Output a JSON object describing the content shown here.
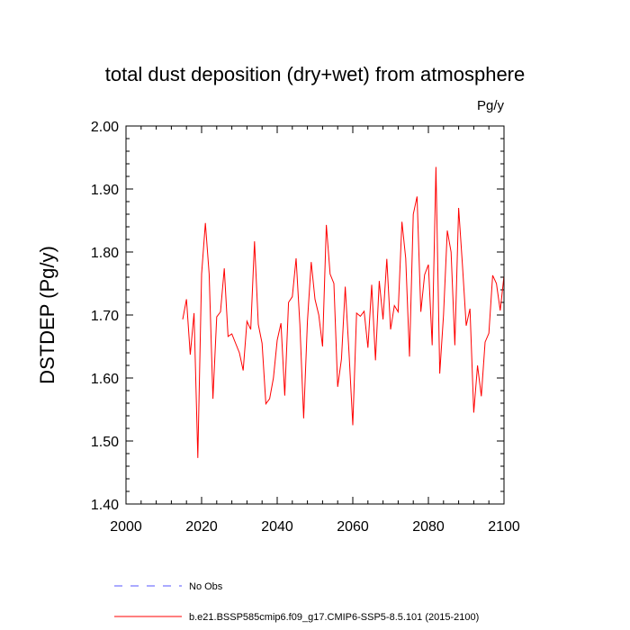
{
  "chart_data": {
    "type": "line",
    "title": "total dust deposition (dry+wet) from atmosphere",
    "units": "Pg/y",
    "xlabel": "",
    "ylabel": "DSTDEP  (Pg/y)",
    "xlim": [
      2000,
      2100
    ],
    "ylim": [
      1.4,
      2.0
    ],
    "x_ticks": [
      2000,
      2020,
      2040,
      2060,
      2080,
      2100
    ],
    "x_tick_labels": [
      "2000",
      "2020",
      "2040",
      "2060",
      "2080",
      "2100"
    ],
    "y_ticks": [
      1.4,
      1.5,
      1.6,
      1.7,
      1.8,
      1.9,
      2.0
    ],
    "y_tick_labels": [
      "1.40",
      "1.50",
      "1.60",
      "1.70",
      "1.80",
      "1.90",
      "2.00"
    ],
    "x": [
      2015,
      2016,
      2017,
      2018,
      2019,
      2020,
      2021,
      2022,
      2023,
      2024,
      2025,
      2026,
      2027,
      2028,
      2029,
      2030,
      2031,
      2032,
      2033,
      2034,
      2035,
      2036,
      2037,
      2038,
      2039,
      2040,
      2041,
      2042,
      2043,
      2044,
      2045,
      2046,
      2047,
      2048,
      2049,
      2050,
      2051,
      2052,
      2053,
      2054,
      2055,
      2056,
      2057,
      2058,
      2059,
      2060,
      2061,
      2062,
      2063,
      2064,
      2065,
      2066,
      2067,
      2068,
      2069,
      2070,
      2071,
      2072,
      2073,
      2074,
      2075,
      2076,
      2077,
      2078,
      2079,
      2080,
      2081,
      2082,
      2083,
      2084,
      2085,
      2086,
      2087,
      2088,
      2089,
      2090,
      2091,
      2092,
      2093,
      2094,
      2095,
      2096,
      2097,
      2098,
      2099,
      2100
    ],
    "series": [
      {
        "name": "b.e21.BSSP585cmip6.f09_g17.CMIP6-SSP5-8.5.101 (2015-2100)",
        "color": "#ff0000",
        "style": "solid",
        "values": [
          1.693,
          1.725,
          1.637,
          1.703,
          1.473,
          1.765,
          1.846,
          1.765,
          1.567,
          1.697,
          1.705,
          1.774,
          1.666,
          1.67,
          1.655,
          1.64,
          1.612,
          1.69,
          1.677,
          1.817,
          1.685,
          1.655,
          1.559,
          1.567,
          1.6,
          1.66,
          1.687,
          1.572,
          1.72,
          1.729,
          1.79,
          1.685,
          1.536,
          1.69,
          1.784,
          1.725,
          1.7,
          1.65,
          1.843,
          1.765,
          1.75,
          1.586,
          1.63,
          1.745,
          1.64,
          1.525,
          1.703,
          1.698,
          1.706,
          1.648,
          1.748,
          1.628,
          1.754,
          1.693,
          1.789,
          1.677,
          1.715,
          1.705,
          1.848,
          1.79,
          1.634,
          1.86,
          1.888,
          1.705,
          1.764,
          1.78,
          1.652,
          1.935,
          1.607,
          1.7,
          1.834,
          1.8,
          1.652,
          1.87,
          1.78,
          1.683,
          1.71,
          1.545,
          1.62,
          1.571,
          1.657,
          1.671,
          1.763,
          1.75,
          1.707,
          1.762
        ]
      }
    ],
    "legend": [
      {
        "label": "No Obs",
        "color": "#5555ff",
        "style": "dashed"
      },
      {
        "label": "b.e21.BSSP585cmip6.f09_g17.CMIP6-SSP5-8.5.101 (2015-2100)",
        "color": "#ff0000",
        "style": "solid"
      }
    ],
    "grid": false,
    "legend_position": "bottom-left"
  }
}
